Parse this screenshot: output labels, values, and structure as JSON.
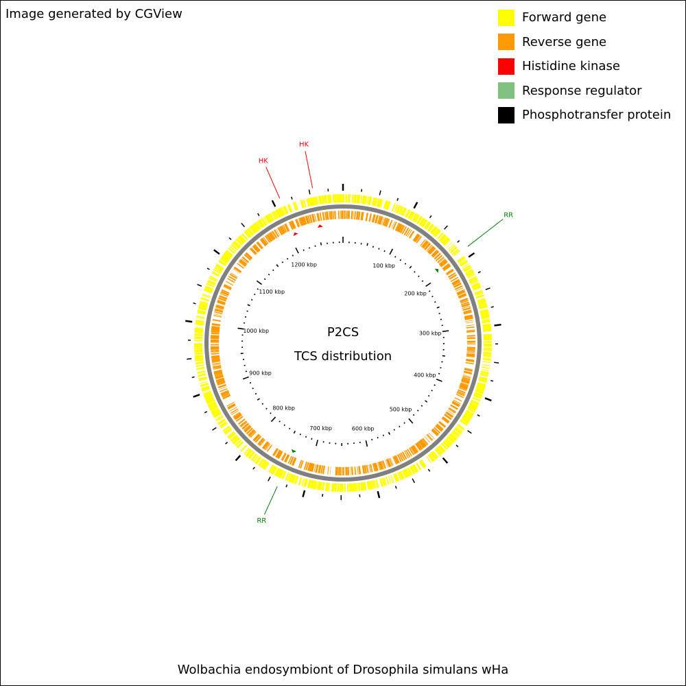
{
  "credit": "Image generated by CGView",
  "legend": [
    {
      "label": "Forward gene",
      "color": "#ffff00"
    },
    {
      "label": "Reverse gene",
      "color": "#ff9900"
    },
    {
      "label": "Histidine kinase",
      "color": "#ff0000"
    },
    {
      "label": "Response regulator",
      "color": "#7fbf7f"
    },
    {
      "label": "Phosphotransfer protein",
      "color": "#000000"
    }
  ],
  "center": {
    "line1": "P2CS",
    "line2": "TCS distribution"
  },
  "footer": "Wolbachia endosymbiont of Drosophila simulans wHa",
  "genome": {
    "length_kbp": 1295,
    "scale_labels": [
      "100 kbp",
      "200 kbp",
      "300 kbp",
      "400 kbp",
      "500 kbp",
      "600 kbp",
      "700 kbp",
      "800 kbp",
      "900 kbp",
      "1000 kbp",
      "1100 kbp",
      "1200 kbp"
    ],
    "scale_positions_kbp": [
      100,
      200,
      300,
      400,
      500,
      600,
      700,
      800,
      900,
      1000,
      1100,
      1200
    ]
  },
  "features": [
    {
      "label": "HK",
      "kind": "Histidine kinase",
      "position_kbp": 1255,
      "color": "#ff0000"
    },
    {
      "label": "HK",
      "kind": "Histidine kinase",
      "position_kbp": 1210,
      "color": "#ff0000"
    },
    {
      "label": "RR",
      "kind": "Response regulator",
      "position_kbp": 188,
      "color": "#007f00"
    },
    {
      "label": "RR",
      "kind": "Response regulator",
      "position_kbp": 736,
      "color": "#007f00"
    }
  ]
}
